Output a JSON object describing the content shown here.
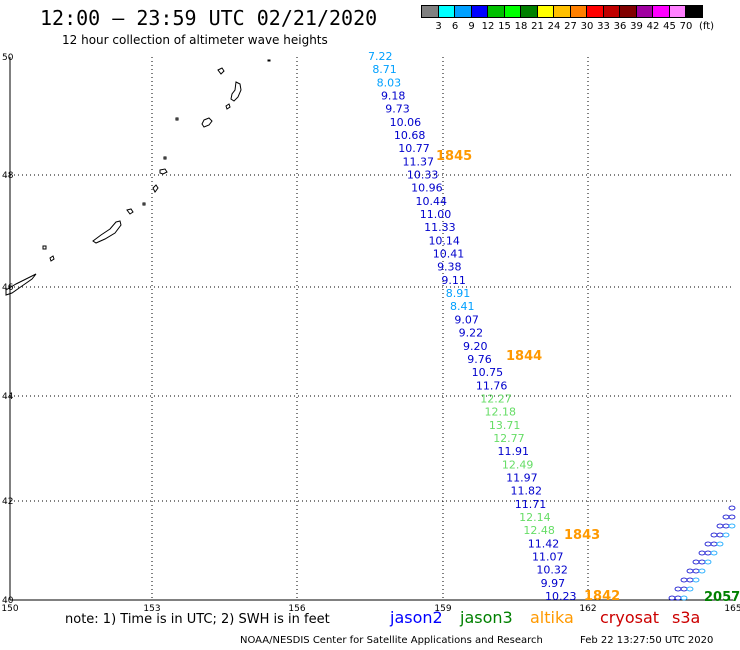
{
  "header": {
    "title": "12:00 – 23:59 UTC 02/21/2020",
    "subtitle": "12 hour collection of altimeter wave heights"
  },
  "color_scale": {
    "colors": [
      "#808080",
      "#00ffff",
      "#00a0ff",
      "#0000ff",
      "#00c000",
      "#00ff00",
      "#008000",
      "#ffff00",
      "#ffc000",
      "#ff8000",
      "#ff0000",
      "#c00000",
      "#800000",
      "#a000a0",
      "#ff00ff",
      "#ff80ff",
      "#000000"
    ],
    "labels": [
      "3",
      "6",
      "9",
      "12",
      "15",
      "18",
      "21",
      "24",
      "27",
      "30",
      "33",
      "36",
      "39",
      "42",
      "45",
      "70",
      "(ft)"
    ]
  },
  "axes": {
    "x_ticks": [
      "150",
      "153",
      "156",
      "159",
      "162",
      "165"
    ],
    "y_ticks": [
      "50",
      "48",
      "46",
      "44",
      "42",
      "40"
    ]
  },
  "track_points": [
    {
      "text": "7.22",
      "color": "#00a0ff"
    },
    {
      "text": "8.71",
      "color": "#00a0ff"
    },
    {
      "text": "8.03",
      "color": "#00a0ff"
    },
    {
      "text": "9.18",
      "color": "#0000cc"
    },
    {
      "text": "9.73",
      "color": "#0000cc"
    },
    {
      "text": "10.06",
      "color": "#0000cc"
    },
    {
      "text": "10.68",
      "color": "#0000cc"
    },
    {
      "text": "10.77",
      "color": "#0000cc"
    },
    {
      "text": "11.37",
      "color": "#0000cc"
    },
    {
      "text": "10.33",
      "color": "#0000cc"
    },
    {
      "text": "10.96",
      "color": "#0000cc"
    },
    {
      "text": "10.44",
      "color": "#0000cc"
    },
    {
      "text": "11.00",
      "color": "#0000cc"
    },
    {
      "text": "11.33",
      "color": "#0000cc"
    },
    {
      "text": "10.14",
      "color": "#0000cc"
    },
    {
      "text": "10.41",
      "color": "#0000cc"
    },
    {
      "text": "9.38",
      "color": "#0000cc"
    },
    {
      "text": "9.11",
      "color": "#0000cc"
    },
    {
      "text": "8.91",
      "color": "#00a0ff"
    },
    {
      "text": "8.41",
      "color": "#00a0ff"
    },
    {
      "text": "9.07",
      "color": "#0000cc"
    },
    {
      "text": "9.22",
      "color": "#0000cc"
    },
    {
      "text": "9.20",
      "color": "#0000cc"
    },
    {
      "text": "9.76",
      "color": "#0000cc"
    },
    {
      "text": "10.75",
      "color": "#0000cc"
    },
    {
      "text": "11.76",
      "color": "#0000cc"
    },
    {
      "text": "12.27",
      "color": "#66dd66"
    },
    {
      "text": "12.18",
      "color": "#66dd66"
    },
    {
      "text": "13.71",
      "color": "#66dd66"
    },
    {
      "text": "12.77",
      "color": "#66dd66"
    },
    {
      "text": "11.91",
      "color": "#0000cc"
    },
    {
      "text": "12.49",
      "color": "#66dd66"
    },
    {
      "text": "11.97",
      "color": "#0000cc"
    },
    {
      "text": "11.82",
      "color": "#0000cc"
    },
    {
      "text": "11.71",
      "color": "#0000cc"
    },
    {
      "text": "12.14",
      "color": "#66dd66"
    },
    {
      "text": "12.48",
      "color": "#66dd66"
    },
    {
      "text": "11.42",
      "color": "#0000cc"
    },
    {
      "text": "11.07",
      "color": "#0000cc"
    },
    {
      "text": "10.32",
      "color": "#0000cc"
    },
    {
      "text": "9.97",
      "color": "#0000cc"
    },
    {
      "text": "10.23",
      "color": "#0000cc"
    }
  ],
  "time_labels": [
    {
      "text": "1845",
      "color": "#ff9900"
    },
    {
      "text": "1844",
      "color": "#ff9900"
    },
    {
      "text": "1843",
      "color": "#ff9900"
    },
    {
      "text": "1842",
      "color": "#ff9900"
    },
    {
      "text": "2057",
      "color": "#008000"
    }
  ],
  "footer": {
    "note": "note: 1) Time is in UTC; 2) SWH is in feet",
    "credit": "NOAA/NESDIS Center for Satellite Applications and Research",
    "timestamp": "Feb 22 13:27:50 UTC 2020"
  },
  "satellites": [
    {
      "name": "jason2",
      "color": "#0000ff"
    },
    {
      "name": "jason3",
      "color": "#008000"
    },
    {
      "name": "altika",
      "color": "#ff9900"
    },
    {
      "name": "cryosat",
      "color": "#cc0000"
    },
    {
      "name": "s3a",
      "color": "#cc0000"
    }
  ]
}
